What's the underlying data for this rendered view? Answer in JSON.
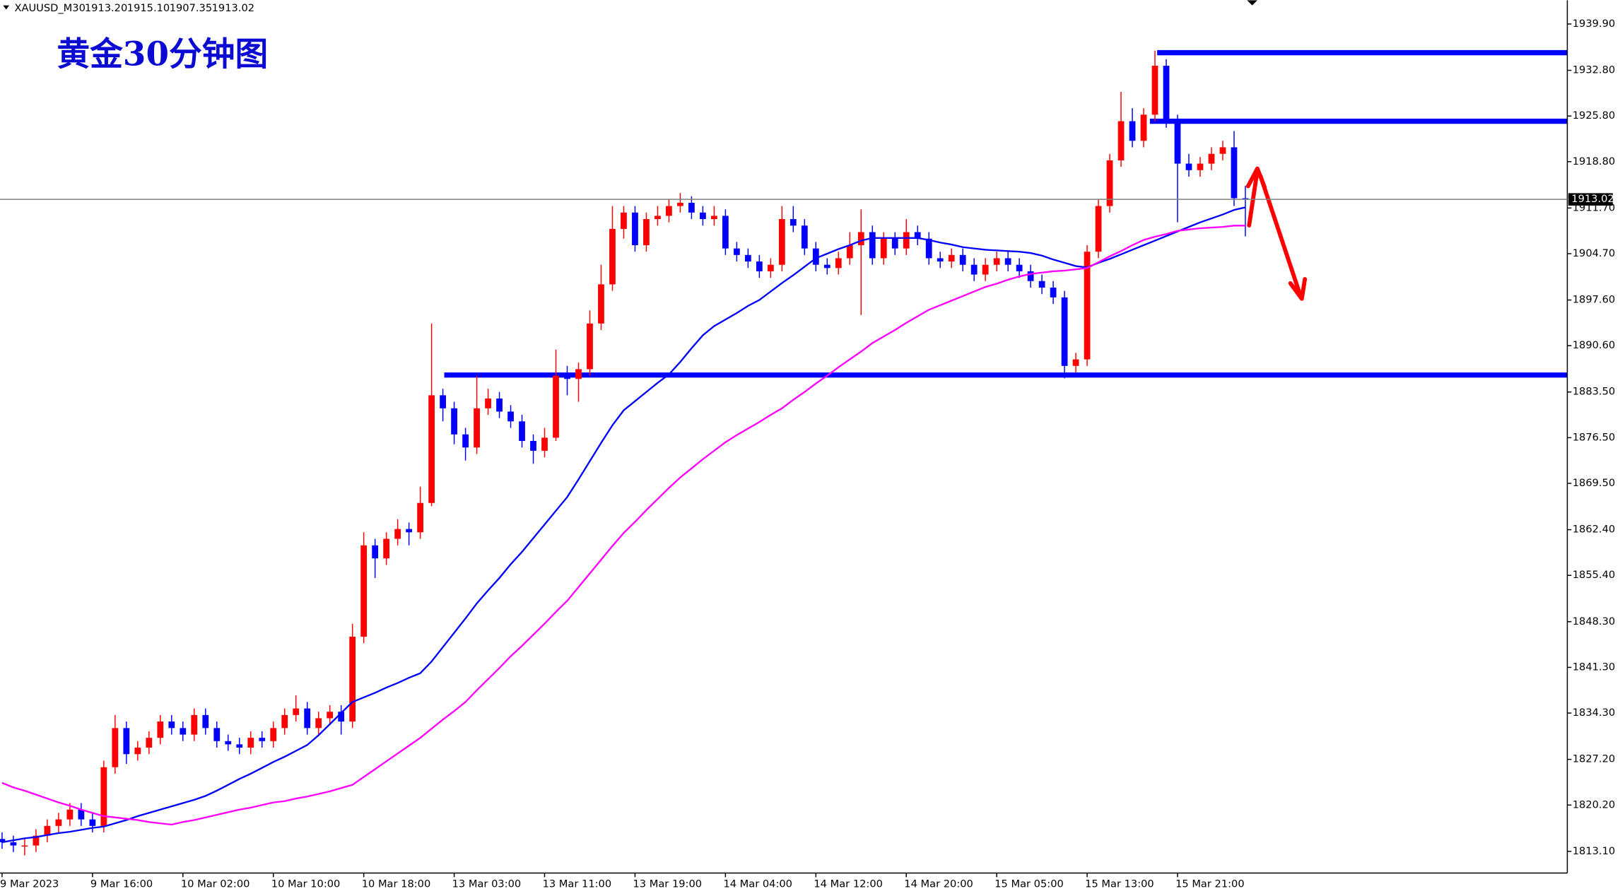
{
  "chart_data": {
    "type": "candlestick",
    "title": "黄金30分钟图",
    "symbol": "XAUUSD_M30",
    "ohlc": [
      {
        "value": 1913.2,
        "label": "1913.20"
      },
      {
        "value": 1915.1,
        "label": "1915.10"
      },
      {
        "value": 1907.35,
        "label": "1907.35"
      },
      {
        "value": 1913.02,
        "label": "1913.02"
      }
    ],
    "last_price": {
      "value": 1913.02,
      "label": "1913.02"
    },
    "bull_color": "#ff0000",
    "bear_color": "#0000ff",
    "level_color": "#0000ff",
    "levels": [
      1935.5,
      1925.0,
      1886.1
    ],
    "ylim": [
      1809.78,
      1943.54
    ],
    "yticks": [
      {
        "value": 1939.9,
        "label": "1939.90"
      },
      {
        "value": 1932.8,
        "label": "1932.80"
      },
      {
        "value": 1925.8,
        "label": "1925.80"
      },
      {
        "value": 1918.8,
        "label": "1918.80"
      },
      {
        "value": 1911.7,
        "label": "1911.70"
      },
      {
        "value": 1904.7,
        "label": "1904.70"
      },
      {
        "value": 1897.6,
        "label": "1897.60"
      },
      {
        "value": 1890.6,
        "label": "1890.60"
      },
      {
        "value": 1883.5,
        "label": "1883.50"
      },
      {
        "value": 1876.5,
        "label": "1876.50"
      },
      {
        "value": 1869.5,
        "label": "1869.50"
      },
      {
        "value": 1862.4,
        "label": "1862.40"
      },
      {
        "value": 1855.4,
        "label": "1855.40"
      },
      {
        "value": 1848.3,
        "label": "1848.30"
      },
      {
        "value": 1841.3,
        "label": "1841.30"
      },
      {
        "value": 1834.3,
        "label": "1834.30"
      },
      {
        "value": 1827.2,
        "label": "1827.20"
      },
      {
        "value": 1820.2,
        "label": "1820.20"
      },
      {
        "value": 1813.1,
        "label": "1813.10"
      }
    ],
    "categories": [
      "9 Mar 2023",
      null,
      null,
      null,
      null,
      null,
      null,
      null,
      "9 Mar 16:00",
      null,
      null,
      null,
      null,
      null,
      null,
      null,
      "10 Mar 02:00",
      null,
      null,
      null,
      null,
      null,
      null,
      null,
      "10 Mar 10:00",
      null,
      null,
      null,
      null,
      null,
      null,
      null,
      "10 Mar 18:00",
      null,
      null,
      null,
      null,
      null,
      null,
      null,
      "13 Mar 03:00",
      null,
      null,
      null,
      null,
      null,
      null,
      null,
      "13 Mar 11:00",
      null,
      null,
      null,
      null,
      null,
      null,
      null,
      "13 Mar 19:00",
      null,
      null,
      null,
      null,
      null,
      null,
      null,
      "14 Mar 04:00",
      null,
      null,
      null,
      null,
      null,
      null,
      null,
      "14 Mar 12:00",
      null,
      null,
      null,
      null,
      null,
      null,
      null,
      "14 Mar 20:00",
      null,
      null,
      null,
      null,
      null,
      null,
      null,
      "15 Mar 05:00",
      null,
      null,
      null,
      null,
      null,
      null,
      null,
      "15 Mar 13:00",
      null,
      null,
      null,
      null,
      null,
      null,
      null,
      "15 Mar 21:00",
      null,
      null,
      null,
      null,
      null,
      null
    ],
    "open": [
      1815,
      1814.5,
      1814,
      1814,
      1815.5,
      1817,
      1818,
      1819.5,
      1818,
      1817,
      1826,
      1832,
      1828,
      1829,
      1830.5,
      1833,
      1832,
      1831,
      1834,
      1832,
      1830,
      1829.5,
      1829,
      1830.5,
      1830,
      1832,
      1834,
      1835,
      1832,
      1833.5,
      1834.5,
      1833,
      1846,
      1860,
      1858,
      1861,
      1862.5,
      1862,
      1866.5,
      1883,
      1881,
      1877,
      1875,
      1881,
      1882.5,
      1880.5,
      1879,
      1876,
      1874.5,
      1876.5,
      1886,
      1885.5,
      1887,
      1894,
      1900,
      1908.5,
      1911,
      1906,
      1910,
      1910.5,
      1912,
      1912.5,
      1911,
      1910,
      1910.5,
      1905.5,
      1904.5,
      1903.5,
      1902,
      1903,
      1910,
      1909,
      1905.5,
      1903,
      1902.5,
      1904,
      1906,
      1908,
      1904,
      1907,
      1905.5,
      1908,
      1907,
      1904,
      1903.5,
      1904.5,
      1903,
      1901.5,
      1903,
      1904,
      1903,
      1902,
      1900.5,
      1899.5,
      1898,
      1887.5,
      1888.5,
      1905,
      1912,
      1919,
      1925,
      1922,
      1926,
      1933.5,
      1925,
      1918.5,
      1917.5,
      1918.5,
      1920,
      1921,
      1913.2
    ],
    "high": [
      1816,
      1815.5,
      1815,
      1816.5,
      1818,
      1819,
      1820.5,
      1820.5,
      1819,
      1827,
      1834,
      1833,
      1830,
      1831.5,
      1834,
      1834,
      1833,
      1835,
      1835,
      1833,
      1831,
      1830.5,
      1831.5,
      1831.5,
      1833,
      1835,
      1837,
      1836,
      1834.5,
      1835.5,
      1835.5,
      1848,
      1862,
      1861,
      1862,
      1864,
      1863.5,
      1869,
      1894,
      1884,
      1882,
      1878,
      1886,
      1884,
      1883.5,
      1881.5,
      1880,
      1877,
      1878,
      1890,
      1887.5,
      1888,
      1896,
      1903,
      1912,
      1912,
      1912,
      1911,
      1912,
      1913,
      1914,
      1913.5,
      1912,
      1912,
      1911.5,
      1906.5,
      1905.5,
      1904.5,
      1904,
      1912,
      1912,
      1910,
      1906.5,
      1904,
      1905,
      1908,
      1911.5,
      1909,
      1908,
      1908,
      1910,
      1909,
      1908,
      1905,
      1905.5,
      1905.5,
      1904,
      1904,
      1905,
      1905,
      1904,
      1903,
      1901.5,
      1900.5,
      1899,
      1889.5,
      1906,
      1913,
      1920,
      1929.5,
      1927,
      1927,
      1935.8,
      1934.5,
      1926,
      1920,
      1919.5,
      1921,
      1922,
      1923.5,
      1915.1
    ],
    "low": [
      1813.5,
      1813,
      1812.5,
      1813,
      1814.5,
      1816,
      1817,
      1817,
      1816,
      1816,
      1825,
      1826.5,
      1827,
      1828,
      1829.5,
      1831,
      1830,
      1830,
      1831,
      1829,
      1828.5,
      1828,
      1828,
      1829,
      1829,
      1831,
      1833,
      1831,
      1831,
      1832.5,
      1831,
      1832,
      1845,
      1855,
      1857,
      1860,
      1860,
      1861,
      1866,
      1879,
      1875.5,
      1873,
      1874,
      1880,
      1879.5,
      1878,
      1875,
      1872.5,
      1873.5,
      1876,
      1883,
      1882,
      1886,
      1893,
      1899,
      1907,
      1905,
      1905,
      1909,
      1909.5,
      1911,
      1910,
      1909,
      1909,
      1904.5,
      1903.5,
      1902.5,
      1901,
      1901,
      1902,
      1908,
      1904.5,
      1902,
      1901.5,
      1901.5,
      1903,
      1895.3,
      1903,
      1903,
      1904.5,
      1904.5,
      1906,
      1903,
      1902.5,
      1902.5,
      1902,
      1900.5,
      1900.5,
      1902,
      1902,
      1901,
      1899.5,
      1898.5,
      1897,
      1885.6,
      1886.5,
      1887.5,
      1904,
      1911,
      1918,
      1921,
      1921,
      1925,
      1924,
      1909.5,
      1916.5,
      1916.5,
      1917.5,
      1919,
      1912,
      1907.35
    ],
    "close": [
      1814.5,
      1814,
      1814,
      1815.5,
      1817,
      1818,
      1819.5,
      1818,
      1817,
      1826,
      1832,
      1828,
      1829,
      1830.5,
      1833,
      1832,
      1831,
      1834,
      1832,
      1830,
      1829.5,
      1829,
      1830.5,
      1830,
      1832,
      1834,
      1835,
      1832,
      1833.5,
      1834.5,
      1833,
      1846,
      1860,
      1858,
      1861,
      1862.5,
      1862,
      1866.5,
      1883,
      1881,
      1877,
      1875,
      1881,
      1882.5,
      1880.5,
      1879,
      1876,
      1874.5,
      1876.5,
      1886,
      1885.5,
      1887,
      1894,
      1900,
      1908.5,
      1911,
      1906,
      1910,
      1910.5,
      1912,
      1912.5,
      1911,
      1910,
      1910.5,
      1905.5,
      1904.5,
      1903.5,
      1902,
      1903,
      1910,
      1909,
      1905.5,
      1903,
      1902.5,
      1904,
      1906,
      1908,
      1904,
      1907,
      1905.5,
      1908,
      1907,
      1904,
      1903.5,
      1904.5,
      1903,
      1901.5,
      1903,
      1904,
      1903,
      1902,
      1900.5,
      1899.5,
      1898,
      1887.5,
      1888.5,
      1905,
      1912,
      1919,
      1925,
      1922,
      1926,
      1933.5,
      1925,
      1918.5,
      1917.5,
      1918.5,
      1920,
      1921,
      1913.2,
      1913.02
    ],
    "overlays": [
      {
        "color": "#0000ff",
        "values": [
          1814.5,
          1814.8,
          1815.1,
          1815.3,
          1815.6,
          1815.9,
          1816.1,
          1816.4,
          1816.7,
          1816.9,
          1817.4,
          1817.9,
          1818.5,
          1819.0,
          1819.5,
          1820.0,
          1820.5,
          1821.0,
          1821.6,
          1822.4,
          1823.3,
          1824.2,
          1825.0,
          1825.9,
          1826.8,
          1827.6,
          1828.5,
          1829.4,
          1830.9,
          1832.6,
          1834.3,
          1836.0,
          1836.7,
          1837.4,
          1838.2,
          1838.9,
          1839.7,
          1840.4,
          1842.2,
          1844.4,
          1846.6,
          1848.8,
          1851.1,
          1853.1,
          1855.0,
          1857.1,
          1859.0,
          1861.1,
          1863.2,
          1865.3,
          1867.4,
          1870.1,
          1872.9,
          1875.7,
          1878.4,
          1880.7,
          1882.1,
          1883.5,
          1884.9,
          1886.2,
          1888.1,
          1890.2,
          1892.2,
          1893.6,
          1894.6,
          1895.6,
          1896.7,
          1897.6,
          1898.9,
          1900.2,
          1901.4,
          1902.7,
          1904.0,
          1904.7,
          1905.4,
          1906.0,
          1906.7,
          1907.1,
          1907.1,
          1907.1,
          1907.1,
          1907.1,
          1906.8,
          1906.4,
          1906.1,
          1905.7,
          1905.5,
          1905.3,
          1905.2,
          1905.1,
          1905.0,
          1904.8,
          1904.4,
          1903.8,
          1903.3,
          1902.8,
          1902.6,
          1903.3,
          1903.9,
          1904.6,
          1905.3,
          1906.0,
          1906.7,
          1907.4,
          1908.1,
          1908.8,
          1909.5,
          1910.1,
          1910.7,
          1911.4,
          1911.8
        ]
      },
      {
        "color": "#ff00ff",
        "values": [
          1823.6,
          1822.9,
          1822.4,
          1821.8,
          1821.2,
          1820.6,
          1820.1,
          1819.5,
          1819.0,
          1818.5,
          1818.3,
          1818.1,
          1817.9,
          1817.6,
          1817.4,
          1817.2,
          1817.6,
          1817.9,
          1818.3,
          1818.7,
          1819.1,
          1819.5,
          1819.8,
          1820.2,
          1820.6,
          1820.8,
          1821.2,
          1821.5,
          1821.9,
          1822.3,
          1822.8,
          1823.3,
          1824.5,
          1825.7,
          1826.9,
          1828.1,
          1829.3,
          1830.5,
          1831.9,
          1833.3,
          1834.6,
          1836.0,
          1837.8,
          1839.5,
          1841.2,
          1843.0,
          1844.6,
          1846.3,
          1848.0,
          1849.8,
          1851.5,
          1853.6,
          1855.7,
          1857.8,
          1859.9,
          1861.9,
          1863.6,
          1865.4,
          1867.1,
          1868.8,
          1870.4,
          1871.8,
          1873.2,
          1874.5,
          1875.8,
          1876.9,
          1877.9,
          1878.9,
          1880.0,
          1881.0,
          1882.3,
          1883.5,
          1884.8,
          1886.0,
          1887.3,
          1888.5,
          1889.7,
          1891.0,
          1892.0,
          1893.0,
          1894.1,
          1895.1,
          1896.1,
          1896.8,
          1897.5,
          1898.2,
          1898.9,
          1899.6,
          1900.1,
          1900.7,
          1901.2,
          1901.6,
          1901.8,
          1902.0,
          1902.1,
          1902.3,
          1902.5,
          1903.4,
          1904.3,
          1905.1,
          1906.0,
          1906.8,
          1907.3,
          1907.7,
          1908.2,
          1908.4,
          1908.6,
          1908.7,
          1908.8,
          1909.0,
          1909.0
        ]
      }
    ]
  }
}
